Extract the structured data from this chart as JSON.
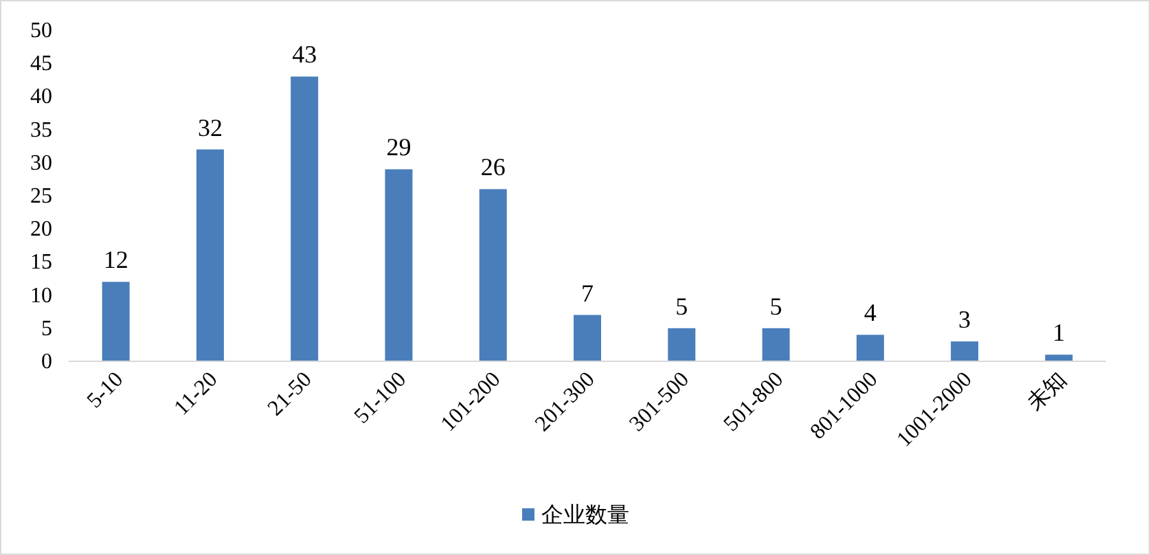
{
  "chart_data": {
    "type": "bar",
    "categories": [
      "5-10",
      "11-20",
      "21-50",
      "51-100",
      "101-200",
      "201-300",
      "301-500",
      "501-800",
      "801-1000",
      "1001-2000",
      "未知"
    ],
    "series": [
      {
        "name": "企业数量",
        "color": "#4a7ebb",
        "values": [
          12,
          32,
          43,
          29,
          26,
          7,
          5,
          5,
          4,
          3,
          1
        ]
      }
    ],
    "ylim": [
      0,
      50
    ],
    "yticks": [
      0,
      5,
      10,
      15,
      20,
      25,
      30,
      35,
      40,
      45,
      50
    ],
    "data_labels": true,
    "legend": "bottom",
    "grid": false
  }
}
